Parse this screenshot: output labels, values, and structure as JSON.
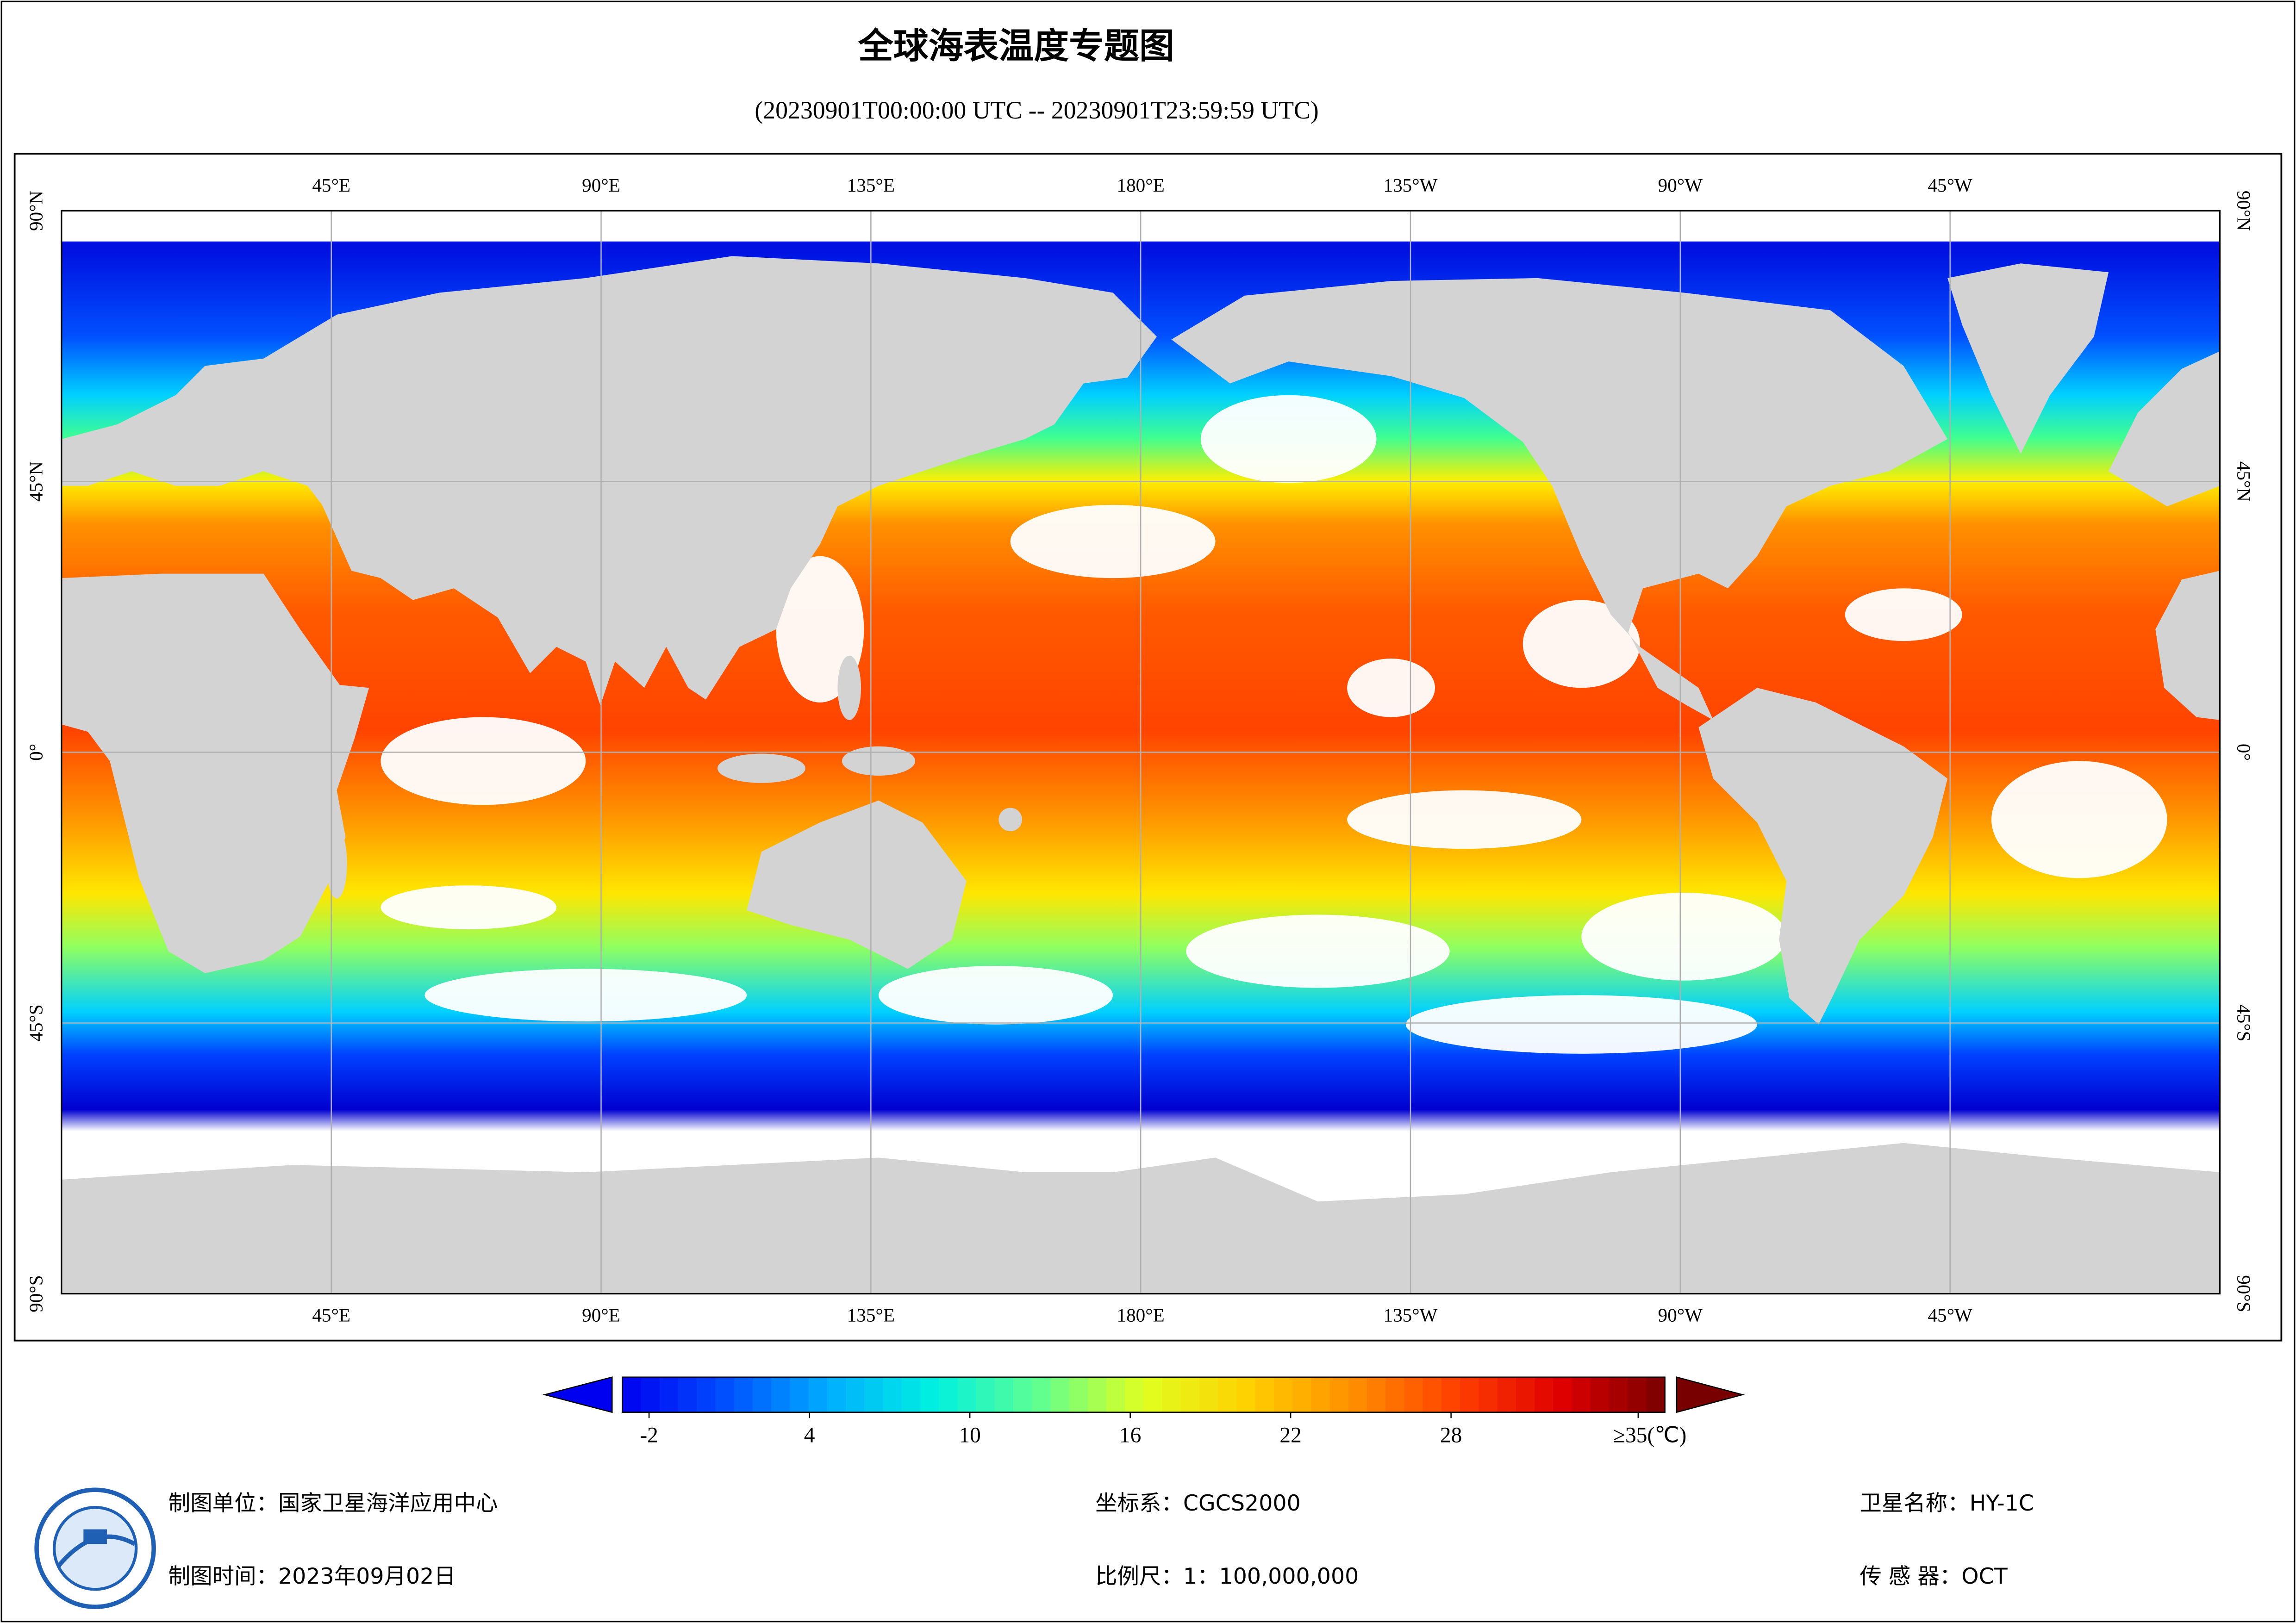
{
  "header": {
    "title": "全球海表温度专题图",
    "subtitle": "(20230901T00:00:00 UTC -- 20230901T23:59:59 UTC)"
  },
  "graticule": {
    "lon_labels": [
      "45°E",
      "90°E",
      "135°E",
      "180°E",
      "135°W",
      "90°W",
      "45°W"
    ],
    "lat_labels": [
      "90°N",
      "45°N",
      "0°",
      "45°S",
      "90°S"
    ]
  },
  "colorbar": {
    "clim": [
      -3,
      36
    ],
    "ticks": [
      -2,
      4,
      10,
      16,
      22,
      28,
      {
        "value": 35,
        "label": "≥35(℃)"
      }
    ],
    "colors": [
      "#0000f0",
      "#0050ff",
      "#00b0ff",
      "#00f0e0",
      "#60ff90",
      "#e0ff20",
      "#ffd000",
      "#ff9000",
      "#ff4000",
      "#e00000",
      "#780000"
    ]
  },
  "footer": {
    "unit": "制图单位：国家卫星海洋应用中心",
    "date": "制图时间：2023年09月02日",
    "crs": "坐标系：CGCS2000",
    "scale": "比例尺：1：100,000,000",
    "satellite": "卫星名称：HY-1C",
    "sensor": "传 感 器：OCT"
  }
}
